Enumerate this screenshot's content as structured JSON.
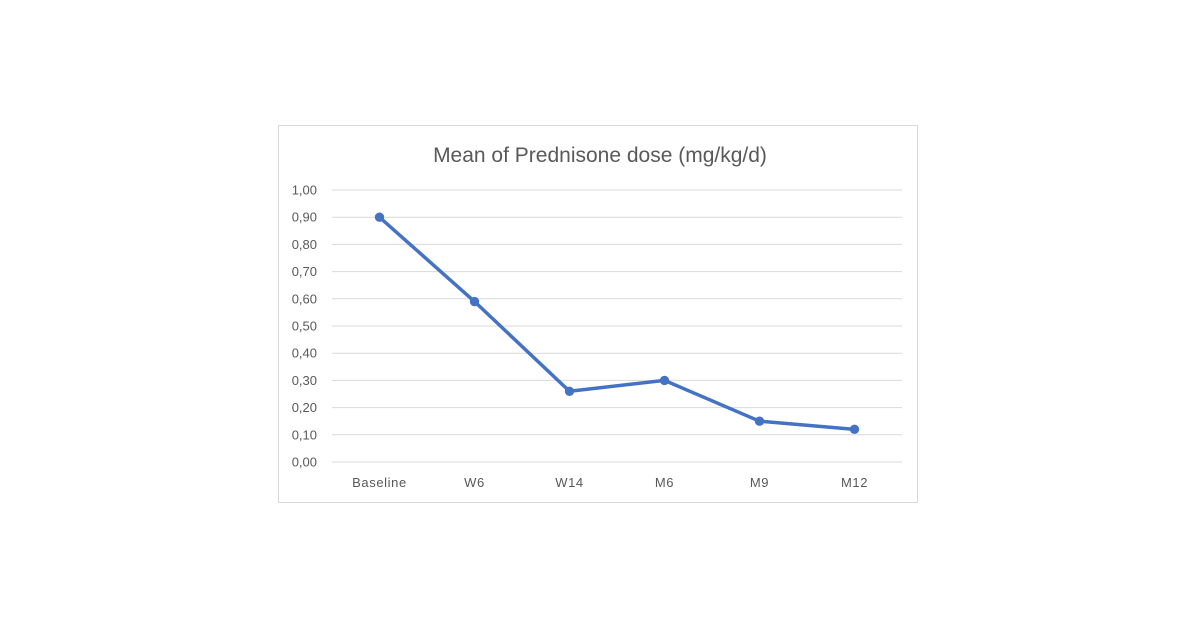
{
  "chart_data": {
    "type": "line",
    "title": "Mean of Prednisone dose (mg/kg/d)",
    "xlabel": "",
    "ylabel": "",
    "categories": [
      "Baseline",
      "W6",
      "W14",
      "M6",
      "M9",
      "M12"
    ],
    "series": [
      {
        "values": [
          0.9,
          0.59,
          0.26,
          0.3,
          0.15,
          0.12
        ],
        "color": "#4472c4"
      }
    ],
    "ylim": [
      0,
      1
    ],
    "yticks": [
      0,
      0.1,
      0.2,
      0.3,
      0.4,
      0.5,
      0.6,
      0.7,
      0.8,
      0.9,
      1.0
    ],
    "ytick_labels": [
      "0,00",
      "0,10",
      "0,20",
      "0,30",
      "0,40",
      "0,50",
      "0,60",
      "0,70",
      "0,80",
      "0,90",
      "1,00"
    ],
    "grid": true,
    "legend": "none"
  }
}
